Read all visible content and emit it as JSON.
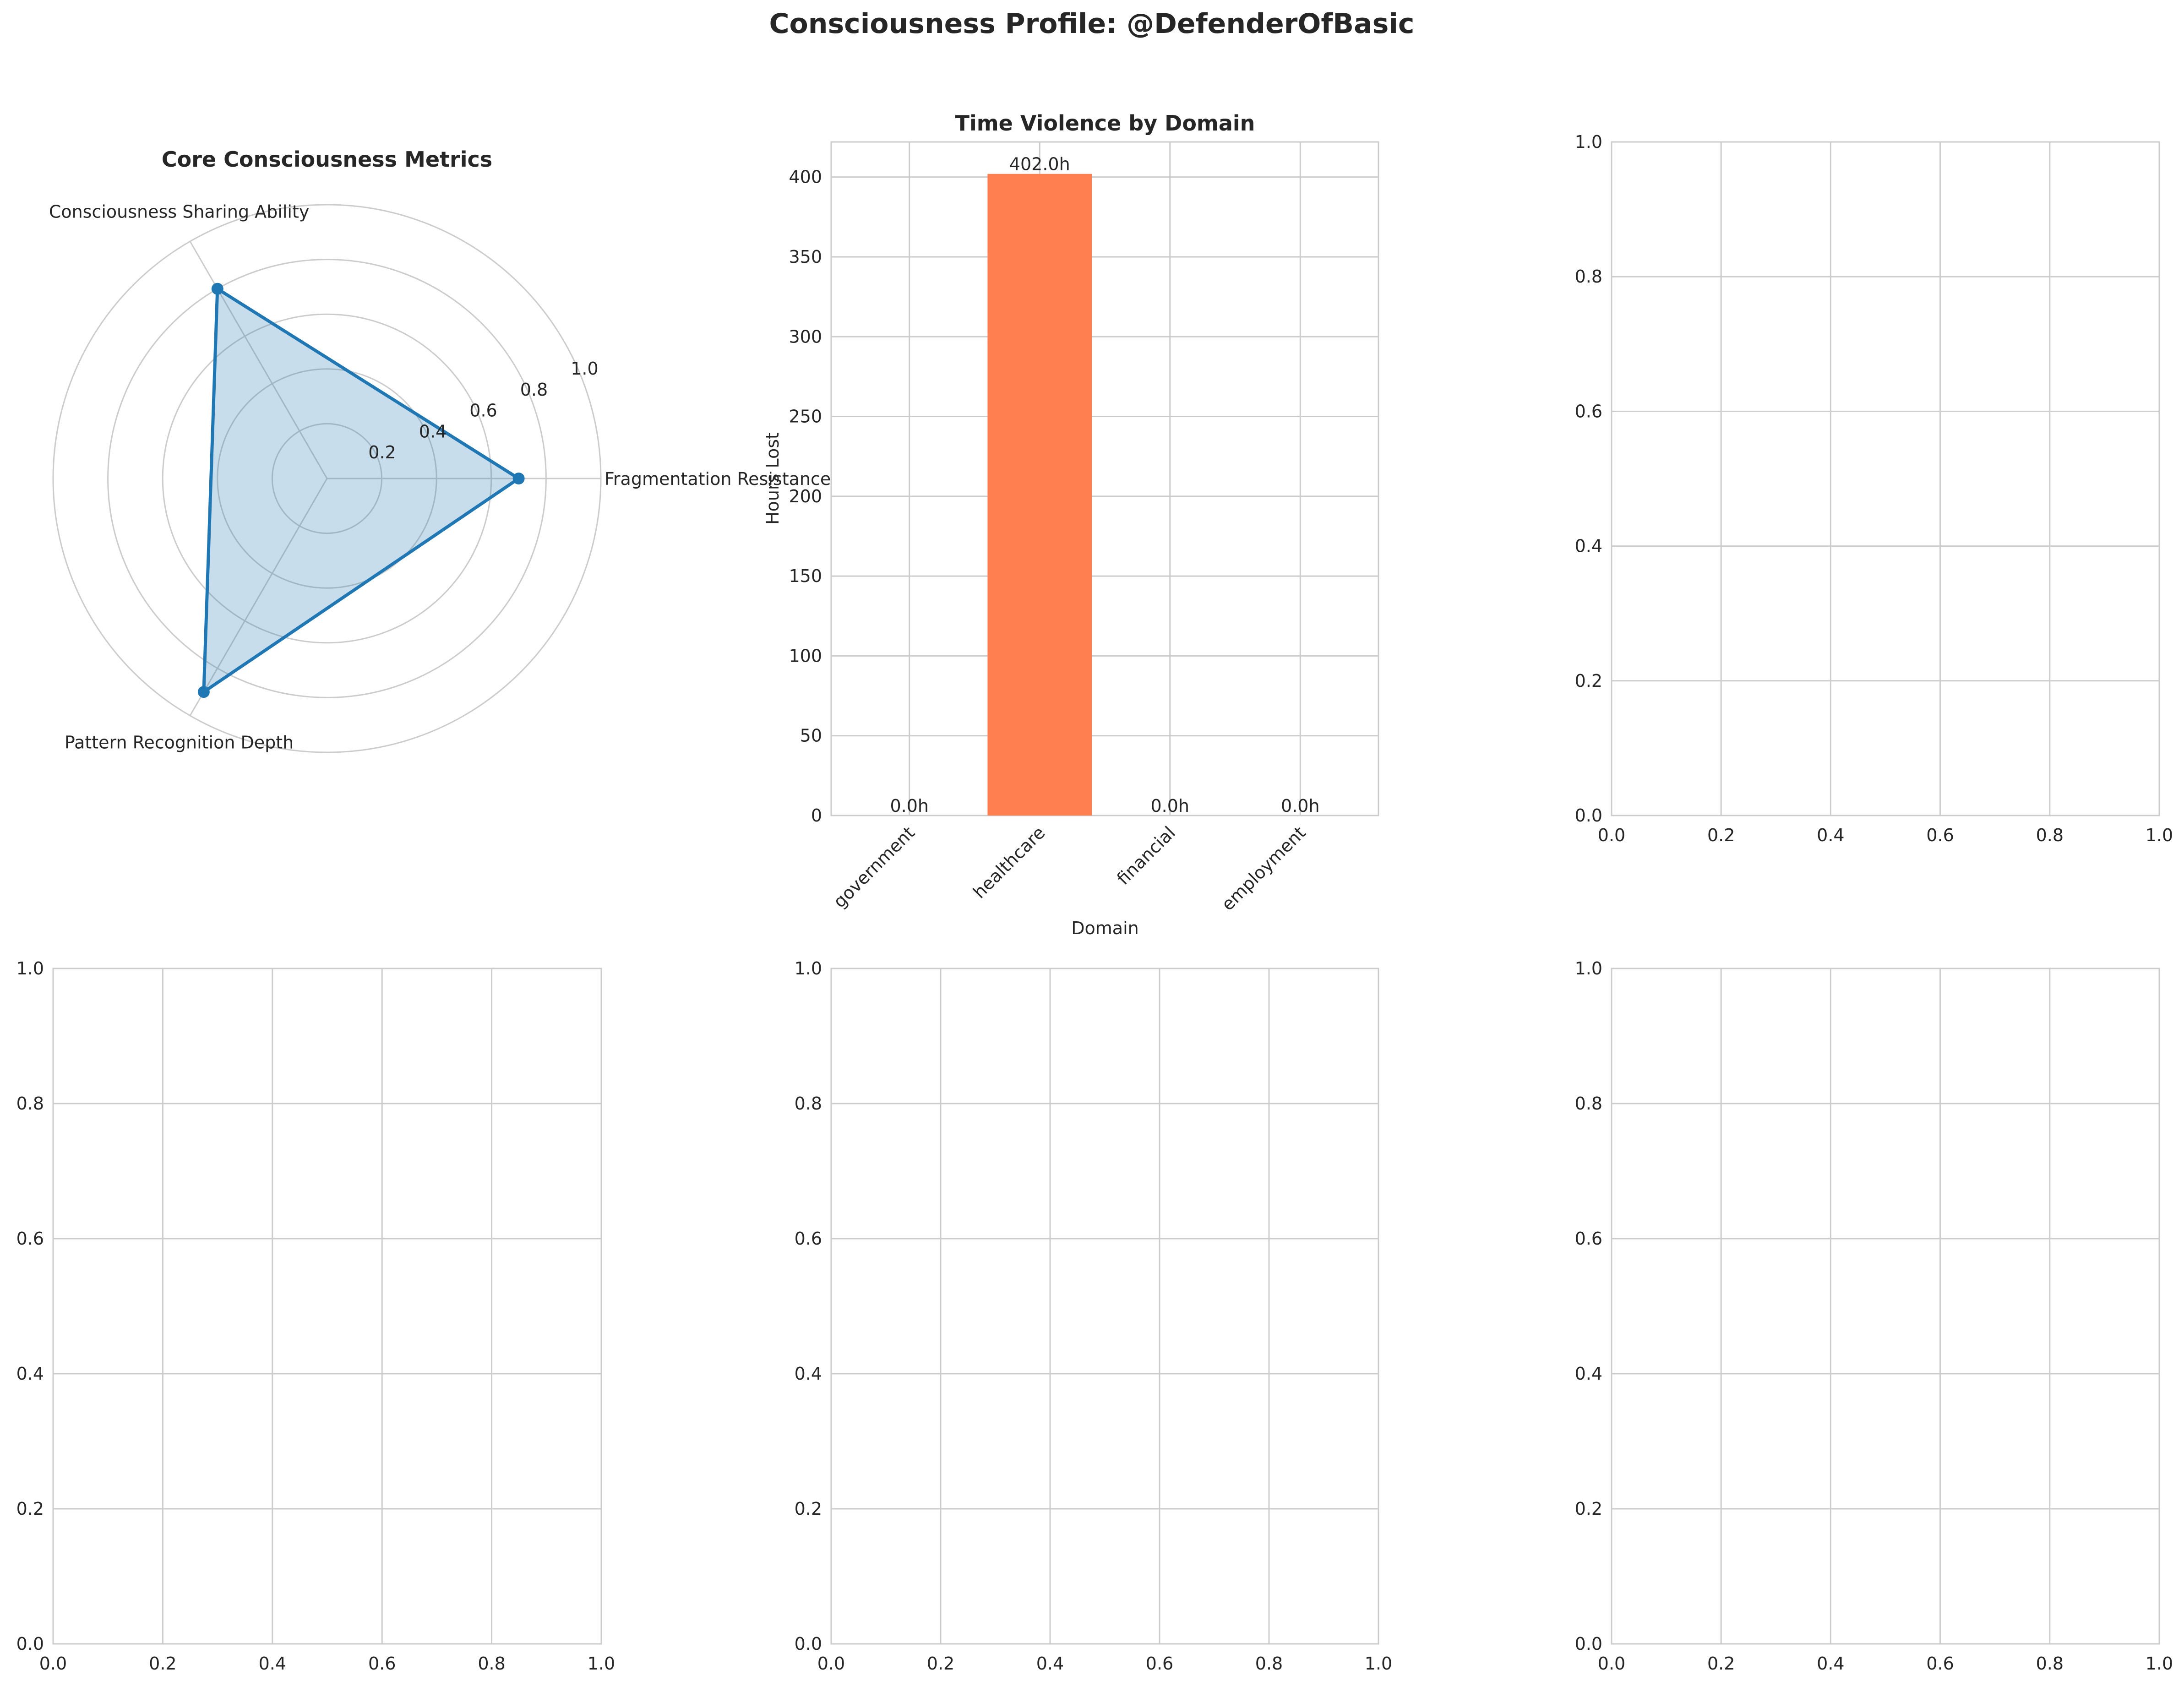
{
  "figure": {
    "suptitle": "Consciousness Profile: @DefenderOfBasic"
  },
  "chart_data": [
    {
      "type": "radar",
      "title": "Core Consciousness Metrics",
      "axes": [
        "Fragmentation Resistance",
        "Consciousness Sharing Ability",
        "Pattern Recognition Depth"
      ],
      "values": [
        0.7,
        0.8,
        0.9
      ],
      "rlim": [
        0,
        1
      ],
      "rticks": [
        "0.2",
        "0.4",
        "0.6",
        "0.8",
        "1.0"
      ],
      "rtick_values": [
        0.2,
        0.4,
        0.6,
        0.8,
        1.0
      ],
      "color": "#1f77b4",
      "fill_color": "#1f77b4",
      "grid": true
    },
    {
      "type": "bar",
      "title": "Time Violence by Domain",
      "categories": [
        "government",
        "healthcare",
        "financial",
        "employment"
      ],
      "values": [
        0.0,
        402.0,
        0.0,
        0.0
      ],
      "data_labels": [
        "0.0h",
        "402.0h",
        "0.0h",
        "0.0h"
      ],
      "xlabel": "Domain",
      "ylabel": "Hours Lost",
      "ylim": [
        0,
        422
      ],
      "yticks": [
        0,
        50,
        100,
        150,
        200,
        250,
        300,
        350,
        400
      ],
      "color": "#ff7f50",
      "grid": true
    },
    {
      "type": "empty",
      "xlim": [
        0,
        1
      ],
      "ylim": [
        0,
        1
      ],
      "ticks": [
        "0.0",
        "0.2",
        "0.4",
        "0.6",
        "0.8",
        "1.0"
      ],
      "grid": true
    },
    {
      "type": "empty",
      "xlim": [
        0,
        1
      ],
      "ylim": [
        0,
        1
      ],
      "ticks": [
        "0.0",
        "0.2",
        "0.4",
        "0.6",
        "0.8",
        "1.0"
      ],
      "grid": true
    },
    {
      "type": "empty",
      "xlim": [
        0,
        1
      ],
      "ylim": [
        0,
        1
      ],
      "ticks": [
        "0.0",
        "0.2",
        "0.4",
        "0.6",
        "0.8",
        "1.0"
      ],
      "grid": true
    },
    {
      "type": "empty",
      "xlim": [
        0,
        1
      ],
      "ylim": [
        0,
        1
      ],
      "ticks": [
        "0.0",
        "0.2",
        "0.4",
        "0.6",
        "0.8",
        "1.0"
      ],
      "grid": true
    }
  ]
}
